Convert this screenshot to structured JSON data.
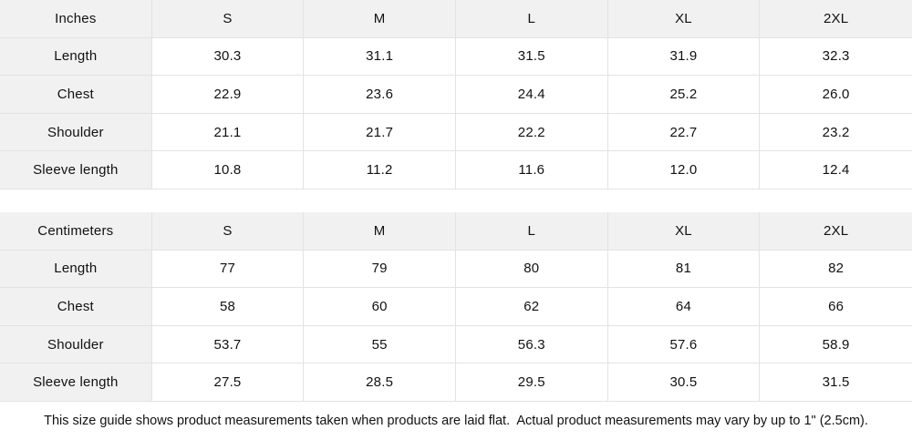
{
  "colors": {
    "header_bg": "#f1f1f1",
    "label_bg": "#f1f1f1",
    "border": "#e3e3e3",
    "text": "#111111",
    "background": "#ffffff"
  },
  "tables": [
    {
      "unit_label": "Inches",
      "sizes": [
        "S",
        "M",
        "L",
        "XL",
        "2XL"
      ],
      "rows": [
        {
          "label": "Length",
          "values": [
            "30.3",
            "31.1",
            "31.5",
            "31.9",
            "32.3"
          ]
        },
        {
          "label": "Chest",
          "values": [
            "22.9",
            "23.6",
            "24.4",
            "25.2",
            "26.0"
          ]
        },
        {
          "label": "Shoulder",
          "values": [
            "21.1",
            "21.7",
            "22.2",
            "22.7",
            "23.2"
          ]
        },
        {
          "label": "Sleeve length",
          "values": [
            "10.8",
            "11.2",
            "11.6",
            "12.0",
            "12.4"
          ]
        }
      ]
    },
    {
      "unit_label": "Centimeters",
      "sizes": [
        "S",
        "M",
        "L",
        "XL",
        "2XL"
      ],
      "rows": [
        {
          "label": "Length",
          "values": [
            "77",
            "79",
            "80",
            "81",
            "82"
          ]
        },
        {
          "label": "Chest",
          "values": [
            "58",
            "60",
            "62",
            "64",
            "66"
          ]
        },
        {
          "label": "Shoulder",
          "values": [
            "53.7",
            "55",
            "56.3",
            "57.6",
            "58.9"
          ]
        },
        {
          "label": "Sleeve length",
          "values": [
            "27.5",
            "28.5",
            "29.5",
            "30.5",
            "31.5"
          ]
        }
      ]
    }
  ],
  "footer": {
    "note": "This size guide shows product measurements taken when products are laid flat.  Actual product measurements may vary by up to 1\" (2.5cm)."
  }
}
